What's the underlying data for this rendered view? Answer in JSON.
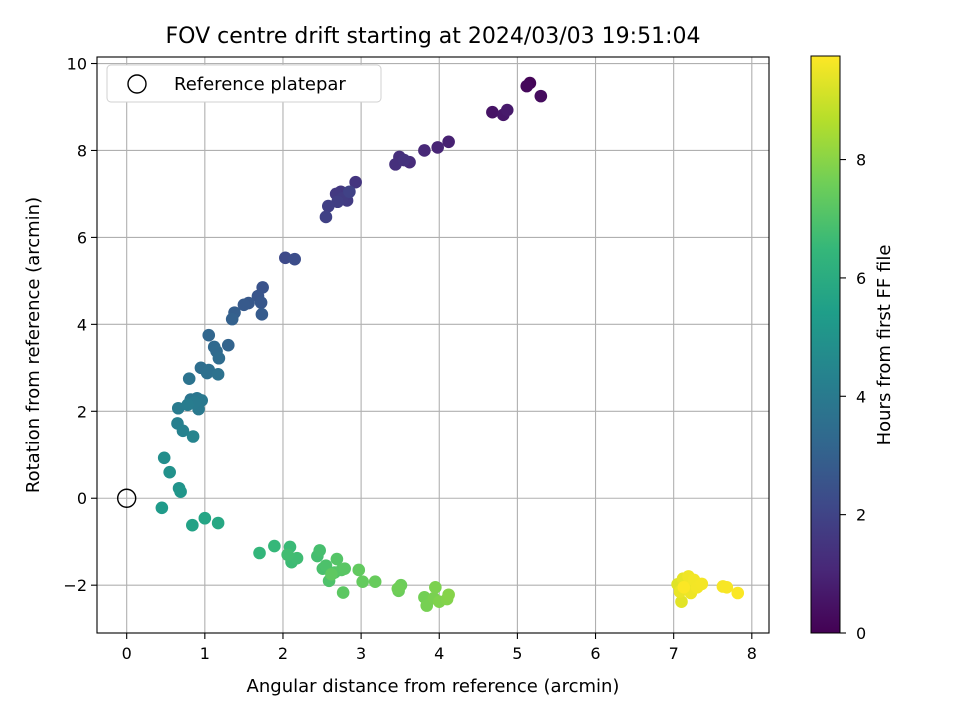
{
  "chart_data": {
    "type": "scatter",
    "title": "FOV centre drift starting at 2024/03/03 19:51:04",
    "xlabel": "Angular distance from reference (arcmin)",
    "ylabel": "Rotation from reference (arcmin)",
    "xlim": [
      -0.38,
      8.22
    ],
    "ylim": [
      -3.1,
      10.15
    ],
    "xticks": [
      0,
      1,
      2,
      3,
      4,
      5,
      6,
      7,
      8
    ],
    "yticks": [
      -2,
      0,
      2,
      4,
      6,
      8,
      10
    ],
    "grid": true,
    "legend": {
      "placement": "top-left",
      "entries": [
        "Reference platepar"
      ]
    },
    "reference_point": {
      "x": 0,
      "y": 0,
      "marker": "open-circle",
      "color": "#000000"
    },
    "colorbar": {
      "label": "Hours from first FF file",
      "range": [
        0,
        9.75
      ],
      "ticks": [
        0,
        2,
        4,
        6,
        8
      ],
      "colormap": "viridis",
      "stops": [
        "#440154",
        "#482878",
        "#3e4989",
        "#31688e",
        "#26828e",
        "#1f9e89",
        "#35b779",
        "#6ece58",
        "#b5de2b",
        "#fde725"
      ]
    },
    "series": [
      {
        "marker": "filled-circle",
        "points": [
          [
            5.16,
            9.55,
            0.1
          ],
          [
            5.12,
            9.48,
            0.2
          ],
          [
            5.3,
            9.25,
            0.3
          ],
          [
            4.68,
            8.88,
            0.5
          ],
          [
            4.82,
            8.82,
            0.6
          ],
          [
            4.87,
            8.93,
            0.7
          ],
          [
            4.12,
            8.2,
            0.9
          ],
          [
            3.98,
            8.07,
            1.0
          ],
          [
            3.81,
            8.0,
            1.1
          ],
          [
            3.62,
            7.73,
            1.2
          ],
          [
            3.49,
            7.85,
            1.3
          ],
          [
            3.44,
            7.68,
            1.35
          ],
          [
            3.55,
            7.78,
            1.4
          ],
          [
            2.93,
            7.27,
            1.5
          ],
          [
            2.74,
            7.05,
            1.6
          ],
          [
            2.68,
            7.0,
            1.65
          ],
          [
            2.82,
            6.85,
            1.7
          ],
          [
            2.76,
            6.9,
            1.75
          ],
          [
            2.7,
            6.82,
            1.8
          ],
          [
            2.58,
            6.72,
            1.85
          ],
          [
            2.55,
            6.47,
            1.9
          ],
          [
            2.85,
            7.05,
            1.95
          ],
          [
            2.03,
            5.53,
            2.2
          ],
          [
            2.15,
            5.5,
            2.3
          ],
          [
            1.74,
            4.85,
            2.5
          ],
          [
            1.68,
            4.65,
            2.6
          ],
          [
            1.72,
            4.5,
            2.65
          ],
          [
            1.56,
            4.49,
            2.7
          ],
          [
            1.5,
            4.45,
            2.75
          ],
          [
            1.73,
            4.23,
            2.8
          ],
          [
            1.38,
            4.27,
            2.9
          ],
          [
            1.35,
            4.12,
            3.0
          ],
          [
            1.3,
            3.52,
            3.1
          ],
          [
            1.05,
            3.75,
            3.2
          ],
          [
            1.12,
            3.48,
            3.3
          ],
          [
            1.15,
            3.38,
            3.35
          ],
          [
            1.18,
            3.22,
            3.4
          ],
          [
            0.95,
            3.0,
            3.5
          ],
          [
            1.05,
            2.95,
            3.55
          ],
          [
            1.03,
            2.88,
            3.6
          ],
          [
            1.17,
            2.85,
            3.65
          ],
          [
            0.8,
            2.75,
            3.7
          ],
          [
            0.82,
            2.27,
            3.8
          ],
          [
            0.9,
            2.3,
            3.85
          ],
          [
            0.96,
            2.25,
            3.9
          ],
          [
            0.92,
            2.05,
            3.95
          ],
          [
            0.87,
            2.2,
            4.0
          ],
          [
            0.66,
            2.07,
            4.05
          ],
          [
            0.78,
            2.15,
            4.1
          ],
          [
            0.65,
            1.72,
            4.2
          ],
          [
            0.72,
            1.55,
            4.3
          ],
          [
            0.85,
            1.42,
            4.4
          ],
          [
            0.48,
            0.93,
            4.8
          ],
          [
            0.55,
            0.6,
            4.9
          ],
          [
            0.67,
            0.23,
            5.0
          ],
          [
            0.69,
            0.15,
            5.1
          ],
          [
            0.45,
            -0.22,
            5.3
          ],
          [
            0.84,
            -0.62,
            5.6
          ],
          [
            1.0,
            -0.46,
            5.7
          ],
          [
            1.17,
            -0.57,
            5.8
          ],
          [
            1.7,
            -1.26,
            6.4
          ],
          [
            1.89,
            -1.1,
            6.5
          ],
          [
            2.09,
            -1.12,
            6.6
          ],
          [
            2.11,
            -1.47,
            6.65
          ],
          [
            2.18,
            -1.38,
            6.7
          ],
          [
            2.06,
            -1.3,
            6.75
          ],
          [
            2.44,
            -1.33,
            6.8
          ],
          [
            2.47,
            -1.2,
            6.85
          ],
          [
            2.51,
            -1.62,
            6.9
          ],
          [
            2.55,
            -1.55,
            6.95
          ],
          [
            2.59,
            -1.9,
            7.0
          ],
          [
            2.66,
            -1.71,
            7.05
          ],
          [
            2.69,
            -1.4,
            7.1
          ],
          [
            2.75,
            -1.65,
            7.15
          ],
          [
            2.79,
            -1.62,
            7.2
          ],
          [
            2.77,
            -2.17,
            7.25
          ],
          [
            2.62,
            -1.75,
            7.3
          ],
          [
            2.97,
            -1.65,
            7.35
          ],
          [
            3.02,
            -1.92,
            7.4
          ],
          [
            3.18,
            -1.92,
            7.45
          ],
          [
            3.48,
            -2.13,
            7.5
          ],
          [
            3.51,
            -2.0,
            7.55
          ],
          [
            3.47,
            -2.08,
            7.6
          ],
          [
            3.81,
            -2.28,
            7.65
          ],
          [
            3.84,
            -2.47,
            7.7
          ],
          [
            3.93,
            -2.3,
            7.75
          ],
          [
            3.95,
            -2.05,
            7.8
          ],
          [
            4.0,
            -2.38,
            7.85
          ],
          [
            4.1,
            -2.32,
            7.9
          ],
          [
            4.12,
            -2.22,
            7.95
          ],
          [
            7.05,
            -1.98,
            9.3
          ],
          [
            7.1,
            -2.38,
            9.35
          ],
          [
            7.12,
            -1.85,
            9.4
          ],
          [
            7.08,
            -2.15,
            9.45
          ],
          [
            7.17,
            -2.02,
            9.5
          ],
          [
            7.22,
            -2.18,
            9.52
          ],
          [
            7.19,
            -1.8,
            9.55
          ],
          [
            7.26,
            -1.88,
            9.58
          ],
          [
            7.3,
            -2.05,
            9.6
          ],
          [
            7.36,
            -1.97,
            9.62
          ],
          [
            7.63,
            -2.03,
            9.65
          ],
          [
            7.68,
            -2.05,
            9.68
          ],
          [
            7.82,
            -2.18,
            9.7
          ],
          [
            7.13,
            -2.05,
            9.72
          ]
        ]
      }
    ]
  }
}
